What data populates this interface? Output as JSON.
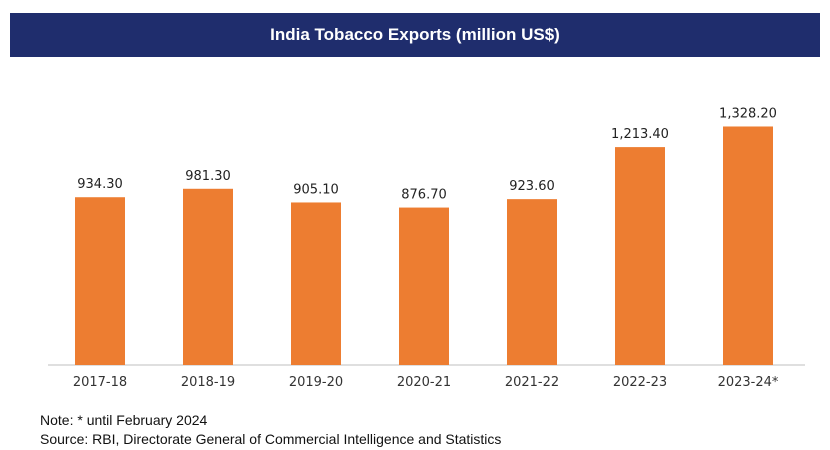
{
  "chart_data": {
    "type": "bar",
    "title": "India Tobacco Exports (million US$)",
    "categories": [
      "2017-18",
      "2018-19",
      "2019-20",
      "2020-21",
      "2021-22",
      "2022-23",
      "2023-24*"
    ],
    "values": [
      934.3,
      981.3,
      905.1,
      876.7,
      923.6,
      1213.4,
      1328.2
    ],
    "value_labels": [
      "934.30",
      "981.30",
      "905.10",
      "876.70",
      "923.60",
      "1,213.40",
      "1,328.20"
    ],
    "xlabel": "",
    "ylabel": "",
    "ylim": [
      0,
      1420
    ],
    "grid": false,
    "legend": "none",
    "bar_color": "#ed7d31",
    "banner_color": "#1f2d6d"
  },
  "footnotes": {
    "note": "Note: * until February 2024",
    "source": "Source: RBI, Directorate General of Commercial Intelligence and Statistics"
  }
}
